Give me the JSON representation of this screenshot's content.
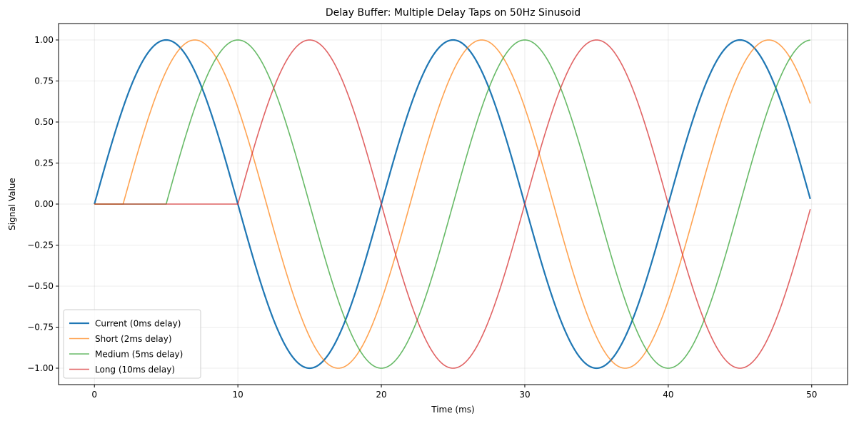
{
  "chart_data": {
    "type": "line",
    "title": "Delay Buffer: Multiple Delay Taps on 50Hz Sinusoid",
    "xlabel": "Time (ms)",
    "ylabel": "Signal Value",
    "xlim": [
      -2.5,
      52.5
    ],
    "ylim": [
      -1.1,
      1.1
    ],
    "x_ticks": [
      0,
      10,
      20,
      30,
      40,
      50
    ],
    "x_tick_labels": [
      "0",
      "10",
      "20",
      "30",
      "40",
      "50"
    ],
    "y_ticks": [
      -1.0,
      -0.75,
      -0.5,
      -0.25,
      0.0,
      0.25,
      0.5,
      0.75,
      1.0
    ],
    "y_tick_labels": [
      "−1.00",
      "−0.75",
      "−0.50",
      "−0.25",
      "0.00",
      "0.25",
      "0.50",
      "0.75",
      "1.00"
    ],
    "grid": true,
    "legend_position": "bottom-left",
    "series": [
      {
        "name": "Current (0ms delay)",
        "color": "#1f77b4",
        "delay_ms": 0,
        "x": [
          0,
          2.5,
          5,
          7.5,
          10,
          12.5,
          15,
          17.5,
          20,
          22.5,
          25,
          27.5,
          30,
          32.5,
          35,
          37.5,
          40,
          42.5,
          45,
          47.5,
          49.9
        ],
        "y": [
          0,
          0.71,
          1.0,
          0.71,
          0,
          -0.71,
          -1.0,
          -0.71,
          0,
          0.71,
          1.0,
          0.71,
          0,
          -0.71,
          -1.0,
          -0.71,
          0,
          0.71,
          1.0,
          0.71,
          0.03
        ]
      },
      {
        "name": "Short (2ms delay)",
        "color": "#ff7f0e",
        "delay_ms": 2,
        "x": [
          0,
          2,
          4.5,
          7,
          9.5,
          12,
          14.5,
          17,
          19.5,
          22,
          24.5,
          27,
          29.5,
          32,
          34.5,
          37,
          39.5,
          42,
          44.5,
          47,
          49.9
        ],
        "y": [
          0,
          0,
          0.71,
          1.0,
          0.71,
          0,
          -0.71,
          -1.0,
          -0.71,
          0,
          0.71,
          1.0,
          0.71,
          0,
          -0.71,
          -1.0,
          -0.71,
          0,
          0.71,
          1.0,
          0.61
        ]
      },
      {
        "name": "Medium (5ms delay)",
        "color": "#2ca02c",
        "delay_ms": 5,
        "x": [
          0,
          5,
          7.5,
          10,
          12.5,
          15,
          17.5,
          20,
          22.5,
          25,
          27.5,
          30,
          32.5,
          35,
          37.5,
          40,
          42.5,
          45,
          47.5,
          49.9
        ],
        "y": [
          0,
          0,
          0.71,
          1.0,
          0.71,
          0,
          -0.71,
          -1.0,
          -0.71,
          0,
          0.71,
          1.0,
          0.71,
          0,
          -0.71,
          -1.0,
          -0.71,
          0,
          0.71,
          1.0
        ]
      },
      {
        "name": "Long (10ms delay)",
        "color": "#d62728",
        "delay_ms": 10,
        "x": [
          0,
          10,
          12.5,
          15,
          17.5,
          20,
          22.5,
          25,
          27.5,
          30,
          32.5,
          35,
          37.5,
          40,
          42.5,
          45,
          47.5,
          49.9
        ],
        "y": [
          0,
          0,
          0.71,
          1.0,
          0.71,
          0,
          -0.71,
          -1.0,
          -0.71,
          0,
          0.71,
          1.0,
          0.71,
          0,
          -0.71,
          -1.0,
          -0.71,
          -0.03
        ]
      }
    ]
  }
}
